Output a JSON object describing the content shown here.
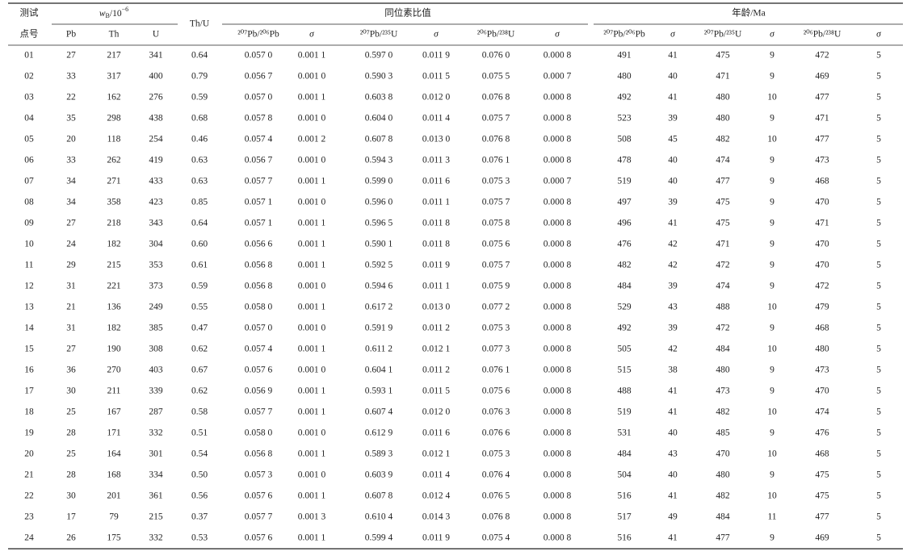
{
  "header": {
    "test_point": [
      "测试",
      "点号"
    ],
    "wb": [
      "w",
      "B",
      "/10",
      "−6"
    ],
    "thu": "Th/U",
    "ratio_group": "同位素比值",
    "age_group": "年龄/Ma",
    "sub": [
      "Pb",
      "Th",
      "U",
      "²⁰⁷Pb/²⁰⁶Pb",
      "σ",
      "²⁰⁷Pb/²³⁵U",
      "σ",
      "²⁰⁶Pb/²³⁸U",
      "σ",
      "²⁰⁷Pb/²⁰⁶Pb",
      "σ",
      "²⁰⁷Pb/²³⁵U",
      "σ",
      "²⁰⁶Pb/²³⁸U",
      "σ"
    ]
  },
  "table": {
    "rows": [
      [
        "01",
        "27",
        "217",
        "341",
        "0.64",
        "0.057 0",
        "0.001 1",
        "0.597 0",
        "0.011 9",
        "0.076 0",
        "0.000 8",
        "491",
        "41",
        "475",
        "9",
        "472",
        "5"
      ],
      [
        "02",
        "33",
        "317",
        "400",
        "0.79",
        "0.056 7",
        "0.001 0",
        "0.590 3",
        "0.011 5",
        "0.075 5",
        "0.000 7",
        "480",
        "40",
        "471",
        "9",
        "469",
        "5"
      ],
      [
        "03",
        "22",
        "162",
        "276",
        "0.59",
        "0.057 0",
        "0.001 1",
        "0.603 8",
        "0.012 0",
        "0.076 8",
        "0.000 8",
        "492",
        "41",
        "480",
        "10",
        "477",
        "5"
      ],
      [
        "04",
        "35",
        "298",
        "438",
        "0.68",
        "0.057 8",
        "0.001 0",
        "0.604 0",
        "0.011 4",
        "0.075 7",
        "0.000 8",
        "523",
        "39",
        "480",
        "9",
        "471",
        "5"
      ],
      [
        "05",
        "20",
        "118",
        "254",
        "0.46",
        "0.057 4",
        "0.001 2",
        "0.607 8",
        "0.013 0",
        "0.076 8",
        "0.000 8",
        "508",
        "45",
        "482",
        "10",
        "477",
        "5"
      ],
      [
        "06",
        "33",
        "262",
        "419",
        "0.63",
        "0.056 7",
        "0.001 0",
        "0.594 3",
        "0.011 3",
        "0.076 1",
        "0.000 8",
        "478",
        "40",
        "474",
        "9",
        "473",
        "5"
      ],
      [
        "07",
        "34",
        "271",
        "433",
        "0.63",
        "0.057 7",
        "0.001 1",
        "0.599 0",
        "0.011 6",
        "0.075 3",
        "0.000 7",
        "519",
        "40",
        "477",
        "9",
        "468",
        "5"
      ],
      [
        "08",
        "34",
        "358",
        "423",
        "0.85",
        "0.057 1",
        "0.001 0",
        "0.596 0",
        "0.011 1",
        "0.075 7",
        "0.000 8",
        "497",
        "39",
        "475",
        "9",
        "470",
        "5"
      ],
      [
        "09",
        "27",
        "218",
        "343",
        "0.64",
        "0.057 1",
        "0.001 1",
        "0.596 5",
        "0.011 8",
        "0.075 8",
        "0.000 8",
        "496",
        "41",
        "475",
        "9",
        "471",
        "5"
      ],
      [
        "10",
        "24",
        "182",
        "304",
        "0.60",
        "0.056 6",
        "0.001 1",
        "0.590 1",
        "0.011 8",
        "0.075 6",
        "0.000 8",
        "476",
        "42",
        "471",
        "9",
        "470",
        "5"
      ],
      [
        "11",
        "29",
        "215",
        "353",
        "0.61",
        "0.056 8",
        "0.001 1",
        "0.592 5",
        "0.011 9",
        "0.075 7",
        "0.000 8",
        "482",
        "42",
        "472",
        "9",
        "470",
        "5"
      ],
      [
        "12",
        "31",
        "221",
        "373",
        "0.59",
        "0.056 8",
        "0.001 0",
        "0.594 6",
        "0.011 1",
        "0.075 9",
        "0.000 8",
        "484",
        "39",
        "474",
        "9",
        "472",
        "5"
      ],
      [
        "13",
        "21",
        "136",
        "249",
        "0.55",
        "0.058 0",
        "0.001 1",
        "0.617 2",
        "0.013 0",
        "0.077 2",
        "0.000 8",
        "529",
        "43",
        "488",
        "10",
        "479",
        "5"
      ],
      [
        "14",
        "31",
        "182",
        "385",
        "0.47",
        "0.057 0",
        "0.001 0",
        "0.591 9",
        "0.011 2",
        "0.075 3",
        "0.000 8",
        "492",
        "39",
        "472",
        "9",
        "468",
        "5"
      ],
      [
        "15",
        "27",
        "190",
        "308",
        "0.62",
        "0.057 4",
        "0.001 1",
        "0.611 2",
        "0.012 1",
        "0.077 3",
        "0.000 8",
        "505",
        "42",
        "484",
        "10",
        "480",
        "5"
      ],
      [
        "16",
        "36",
        "270",
        "403",
        "0.67",
        "0.057 6",
        "0.001 0",
        "0.604 1",
        "0.011 2",
        "0.076 1",
        "0.000 8",
        "515",
        "38",
        "480",
        "9",
        "473",
        "5"
      ],
      [
        "17",
        "30",
        "211",
        "339",
        "0.62",
        "0.056 9",
        "0.001 1",
        "0.593 1",
        "0.011 5",
        "0.075 6",
        "0.000 8",
        "488",
        "41",
        "473",
        "9",
        "470",
        "5"
      ],
      [
        "18",
        "25",
        "167",
        "287",
        "0.58",
        "0.057 7",
        "0.001 1",
        "0.607 4",
        "0.012 0",
        "0.076 3",
        "0.000 8",
        "519",
        "41",
        "482",
        "10",
        "474",
        "5"
      ],
      [
        "19",
        "28",
        "171",
        "332",
        "0.51",
        "0.058 0",
        "0.001 0",
        "0.612 9",
        "0.011 6",
        "0.076 6",
        "0.000 8",
        "531",
        "40",
        "485",
        "9",
        "476",
        "5"
      ],
      [
        "20",
        "25",
        "164",
        "301",
        "0.54",
        "0.056 8",
        "0.001 1",
        "0.589 3",
        "0.012 1",
        "0.075 3",
        "0.000 8",
        "484",
        "43",
        "470",
        "10",
        "468",
        "5"
      ],
      [
        "21",
        "28",
        "168",
        "334",
        "0.50",
        "0.057 3",
        "0.001 0",
        "0.603 9",
        "0.011 4",
        "0.076 4",
        "0.000 8",
        "504",
        "40",
        "480",
        "9",
        "475",
        "5"
      ],
      [
        "22",
        "30",
        "201",
        "361",
        "0.56",
        "0.057 6",
        "0.001 1",
        "0.607 8",
        "0.012 4",
        "0.076 5",
        "0.000 8",
        "516",
        "41",
        "482",
        "10",
        "475",
        "5"
      ],
      [
        "23",
        "17",
        "79",
        "215",
        "0.37",
        "0.057 7",
        "0.001 3",
        "0.610 4",
        "0.014 3",
        "0.076 8",
        "0.000 8",
        "517",
        "49",
        "484",
        "11",
        "477",
        "5"
      ],
      [
        "24",
        "26",
        "175",
        "332",
        "0.53",
        "0.057 6",
        "0.001 1",
        "0.599 4",
        "0.011 9",
        "0.075 4",
        "0.000 8",
        "516",
        "41",
        "477",
        "9",
        "469",
        "5"
      ]
    ]
  }
}
